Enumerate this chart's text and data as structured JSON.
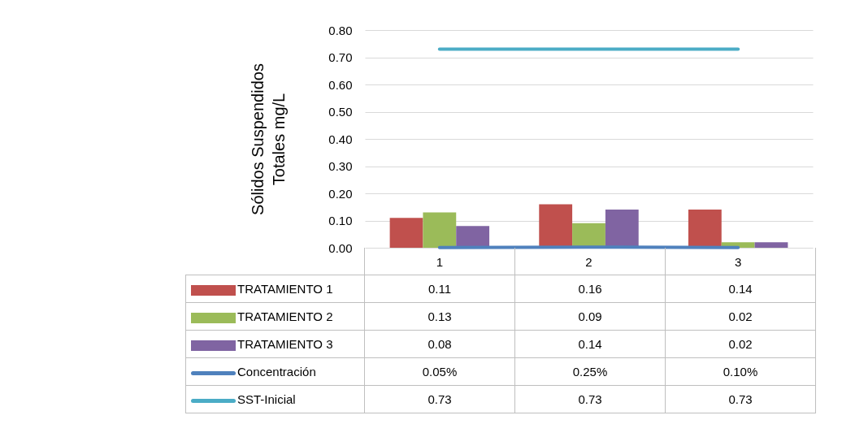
{
  "chart_data": {
    "type": "bar",
    "ylabel": "Sólidos Suspendidos Totales mg/L",
    "categories": [
      "1",
      "2",
      "3"
    ],
    "series": [
      {
        "name": "TRATAMIENTO 1",
        "type": "bar",
        "color": "#c0504d",
        "values": [
          0.11,
          0.16,
          0.14
        ],
        "value_labels": [
          "0.11",
          "0.16",
          "0.14"
        ]
      },
      {
        "name": "TRATAMIENTO 2",
        "type": "bar",
        "color": "#9bbb59",
        "values": [
          0.13,
          0.09,
          0.02
        ],
        "value_labels": [
          "0.13",
          "0.09",
          "0.02"
        ]
      },
      {
        "name": "TRATAMIENTO 3",
        "type": "bar",
        "color": "#8064a2",
        "values": [
          0.08,
          0.14,
          0.02
        ],
        "value_labels": [
          "0.08",
          "0.14",
          "0.02"
        ]
      },
      {
        "name": "Concentración",
        "type": "line",
        "color": "#4f81bd",
        "values": [
          0.0005,
          0.0025,
          0.001
        ],
        "value_labels": [
          "0.05%",
          "0.25%",
          "0.10%"
        ]
      },
      {
        "name": "SST-Inicial",
        "type": "line",
        "color": "#4bacc6",
        "values": [
          0.73,
          0.73,
          0.73
        ],
        "value_labels": [
          "0.73",
          "0.73",
          "0.73"
        ]
      }
    ],
    "ylim": [
      0,
      0.8
    ],
    "yticks": [
      {
        "value": 0,
        "label": "0.00"
      },
      {
        "value": 0.1,
        "label": "0.10"
      },
      {
        "value": 0.2,
        "label": "0.20"
      },
      {
        "value": 0.3,
        "label": "0.30"
      },
      {
        "value": 0.4,
        "label": "0.40"
      },
      {
        "value": 0.5,
        "label": "0.50"
      },
      {
        "value": 0.6,
        "label": "0.60"
      },
      {
        "value": 0.7,
        "label": "0.70"
      },
      {
        "value": 0.8,
        "label": "0.80"
      }
    ],
    "grid": "y",
    "legend": "bottom"
  }
}
